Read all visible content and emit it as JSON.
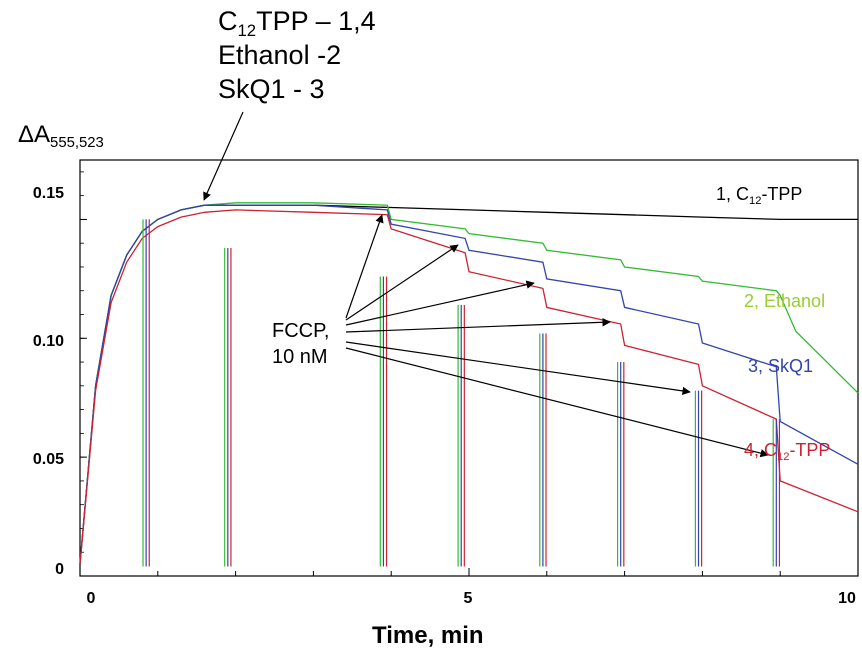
{
  "annotation": {
    "line1_main": "C",
    "line1_sub": "12",
    "line1_rest": "TPP – 1,4",
    "line2": "Ethanol -2",
    "line3": "SkQ1 - 3"
  },
  "fccp": {
    "line1": "FCCP,",
    "line2": "10 nM"
  },
  "chart_data": {
    "type": "line",
    "title": "",
    "xlabel": "Time, min",
    "ylabel_main": "ΔA",
    "ylabel_sub": "555,523",
    "xlim": [
      0,
      10
    ],
    "ylim": [
      0,
      0.175
    ],
    "xticks": [
      "0",
      "5",
      "10"
    ],
    "yticks": [
      "0",
      "0.05",
      "0.10",
      "0.15"
    ],
    "grid": false,
    "fccp_additions_min": [
      3.9,
      4.9,
      5.95,
      6.95,
      7.95,
      8.95
    ],
    "series": [
      {
        "label_num": "1, ",
        "label_main": "C",
        "label_sub": "12",
        "label_rest": "-TPP",
        "color": "#000000",
        "x": [
          0,
          0.2,
          0.4,
          0.6,
          0.8,
          1.0,
          1.3,
          1.6,
          2.0,
          3.0,
          4.0,
          5.0,
          6.0,
          7.0,
          8.0,
          9.0,
          10.0
        ],
        "y": [
          0.005,
          0.08,
          0.118,
          0.135,
          0.145,
          0.15,
          0.154,
          0.156,
          0.156,
          0.156,
          0.155,
          0.154,
          0.153,
          0.152,
          0.151,
          0.15,
          0.15
        ]
      },
      {
        "label_num": "2, ",
        "label_main": "Ethanol",
        "label_sub": "",
        "label_rest": "",
        "color": "#33bb33",
        "x": [
          0,
          0.2,
          0.4,
          0.6,
          0.8,
          1.0,
          1.3,
          1.6,
          2.0,
          3.0,
          3.95,
          4.0,
          4.95,
          5.0,
          5.95,
          6.0,
          6.95,
          7.0,
          7.95,
          8.0,
          8.95,
          9.0,
          9.2,
          9.6,
          10.0
        ],
        "y": [
          0.005,
          0.08,
          0.118,
          0.135,
          0.145,
          0.15,
          0.154,
          0.156,
          0.157,
          0.157,
          0.156,
          0.15,
          0.146,
          0.144,
          0.14,
          0.137,
          0.133,
          0.13,
          0.126,
          0.124,
          0.12,
          0.118,
          0.103,
          0.09,
          0.077
        ]
      },
      {
        "label_num": "3, ",
        "label_main": "SkQ1",
        "label_sub": "",
        "label_rest": "",
        "color": "#3344aa",
        "x": [
          0,
          0.2,
          0.4,
          0.6,
          0.8,
          1.0,
          1.3,
          1.6,
          2.0,
          3.0,
          3.95,
          4.0,
          4.95,
          5.0,
          5.95,
          6.0,
          6.95,
          7.0,
          7.95,
          8.0,
          8.95,
          9.0,
          10.0
        ],
        "y": [
          0.005,
          0.08,
          0.118,
          0.135,
          0.145,
          0.15,
          0.154,
          0.156,
          0.156,
          0.156,
          0.154,
          0.148,
          0.142,
          0.137,
          0.132,
          0.125,
          0.12,
          0.113,
          0.106,
          0.098,
          0.088,
          0.065,
          0.047
        ]
      },
      {
        "label_num": "4, ",
        "label_main": "C",
        "label_sub": "12",
        "label_rest": "-TPP",
        "color": "#cc2233",
        "x": [
          0,
          0.2,
          0.4,
          0.6,
          0.8,
          1.0,
          1.3,
          1.6,
          2.0,
          3.0,
          3.95,
          4.0,
          4.95,
          5.0,
          5.95,
          6.0,
          6.95,
          7.0,
          7.95,
          8.0,
          8.95,
          9.0,
          10.0
        ],
        "y": [
          0.005,
          0.078,
          0.115,
          0.132,
          0.142,
          0.147,
          0.151,
          0.153,
          0.154,
          0.153,
          0.152,
          0.146,
          0.136,
          0.128,
          0.121,
          0.113,
          0.106,
          0.097,
          0.089,
          0.08,
          0.066,
          0.04,
          0.027
        ]
      }
    ]
  }
}
